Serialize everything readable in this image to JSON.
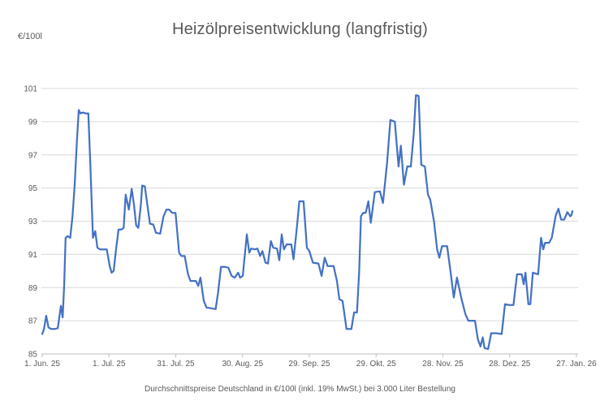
{
  "chart_data": {
    "type": "line",
    "title": "Heizölpreisentwicklung (langfristig)",
    "unit_label": "€/100l",
    "caption": "Durchschnittspreise Deutschland in €/100l (inkl. 19% MwSt.) bei 3.000 Liter Bestellung",
    "xlabel": "",
    "ylabel": "€/100l",
    "ylim": [
      85,
      101
    ],
    "y_ticks": [
      85,
      87,
      89,
      91,
      93,
      95,
      97,
      99,
      101
    ],
    "x_tick_labels": [
      "1. Jun. 25",
      "1. Jul. 25",
      "31. Jul. 25",
      "30. Aug. 25",
      "29. Sep. 25",
      "29. Okt. 25",
      "28. Nov. 25",
      "28. Dez. 25",
      "27. Jan. 26"
    ],
    "x_tick_days": [
      0,
      30,
      60,
      90,
      120,
      150,
      180,
      210,
      240
    ],
    "xlim_days": [
      0,
      240
    ],
    "grid": "horizontal",
    "legend": "none",
    "colors": {
      "line": "#4472c4",
      "grid": "#d9d9d9",
      "axis": "#bfbfbf",
      "text": "#595959"
    },
    "series": [
      {
        "name": "Heizölpreis",
        "points": [
          [
            0,
            86.2
          ],
          [
            0.8,
            86.5
          ],
          [
            1.8,
            87.3
          ],
          [
            2.8,
            86.6
          ],
          [
            4,
            86.5
          ],
          [
            5.5,
            86.5
          ],
          [
            7,
            86.55
          ],
          [
            8.4,
            87.9
          ],
          [
            9.2,
            87.2
          ],
          [
            9.9,
            89.2
          ],
          [
            10.5,
            92.0
          ],
          [
            11.3,
            92.1
          ],
          [
            12.6,
            92.0
          ],
          [
            13.6,
            93.3
          ],
          [
            14.6,
            95.2
          ],
          [
            15.6,
            97.9
          ],
          [
            16.4,
            99.7
          ],
          [
            17.2,
            99.5
          ],
          [
            18.3,
            99.55
          ],
          [
            19.5,
            99.5
          ],
          [
            20.7,
            99.5
          ],
          [
            21.6,
            96.5
          ],
          [
            22.8,
            92.0
          ],
          [
            23.8,
            92.4
          ],
          [
            24.8,
            91.4
          ],
          [
            26,
            91.3
          ],
          [
            27.5,
            91.3
          ],
          [
            29,
            91.3
          ],
          [
            30.3,
            90.3
          ],
          [
            31.2,
            89.9
          ],
          [
            32.1,
            90.0
          ],
          [
            33.1,
            91.2
          ],
          [
            34.3,
            92.5
          ],
          [
            35.6,
            92.5
          ],
          [
            36.6,
            92.6
          ],
          [
            37.5,
            94.6
          ],
          [
            38.9,
            93.7
          ],
          [
            40.2,
            94.95
          ],
          [
            41.2,
            94.0
          ],
          [
            42.2,
            92.75
          ],
          [
            43.2,
            92.6
          ],
          [
            44.3,
            94.0
          ],
          [
            44.9,
            95.15
          ],
          [
            46.1,
            95.1
          ],
          [
            47.4,
            93.8
          ],
          [
            48.4,
            92.85
          ],
          [
            49.9,
            92.8
          ],
          [
            51.1,
            92.3
          ],
          [
            53,
            92.25
          ],
          [
            54.5,
            93.3
          ],
          [
            55.8,
            93.7
          ],
          [
            57.1,
            93.7
          ],
          [
            58.4,
            93.5
          ],
          [
            59.9,
            93.5
          ],
          [
            61.5,
            91.1
          ],
          [
            62.5,
            90.9
          ],
          [
            64,
            90.9
          ],
          [
            65.5,
            89.8
          ],
          [
            66.6,
            89.4
          ],
          [
            69,
            89.4
          ],
          [
            70.1,
            89.1
          ],
          [
            71.1,
            89.6
          ],
          [
            72.6,
            88.2
          ],
          [
            73.8,
            87.8
          ],
          [
            76,
            87.75
          ],
          [
            77.9,
            87.7
          ],
          [
            79,
            88.7
          ],
          [
            80.3,
            90.25
          ],
          [
            82,
            90.25
          ],
          [
            83.6,
            90.2
          ],
          [
            85.1,
            89.7
          ],
          [
            86.5,
            89.6
          ],
          [
            88,
            89.9
          ],
          [
            88.9,
            89.6
          ],
          [
            90.1,
            89.7
          ],
          [
            91.9,
            92.2
          ],
          [
            93,
            91.1
          ],
          [
            93.9,
            91.35
          ],
          [
            95.5,
            91.3
          ],
          [
            96.7,
            91.35
          ],
          [
            97.9,
            90.9
          ],
          [
            98.9,
            91.2
          ],
          [
            100.3,
            90.5
          ],
          [
            101.4,
            90.45
          ],
          [
            102.7,
            91.8
          ],
          [
            103.8,
            91.4
          ],
          [
            105.5,
            91.35
          ],
          [
            106.5,
            90.65
          ],
          [
            107.6,
            92.2
          ],
          [
            108.6,
            91.3
          ],
          [
            109.8,
            91.6
          ],
          [
            111.9,
            91.6
          ],
          [
            112.9,
            90.7
          ],
          [
            114.3,
            92.5
          ],
          [
            115.5,
            94.2
          ],
          [
            117.4,
            94.2
          ],
          [
            118.9,
            91.4
          ],
          [
            120,
            91.2
          ],
          [
            121.6,
            90.5
          ],
          [
            124.1,
            90.45
          ],
          [
            125.5,
            89.7
          ],
          [
            126.9,
            90.8
          ],
          [
            128.2,
            90.3
          ],
          [
            130.9,
            90.3
          ],
          [
            132.4,
            89.4
          ],
          [
            133.5,
            88.3
          ],
          [
            134.9,
            88.2
          ],
          [
            136.7,
            86.5
          ],
          [
            138.9,
            86.5
          ],
          [
            140.1,
            87.5
          ],
          [
            141.4,
            87.5
          ],
          [
            142.4,
            90.0
          ],
          [
            143.2,
            93.3
          ],
          [
            144.2,
            93.5
          ],
          [
            145.3,
            93.5
          ],
          [
            146.5,
            94.2
          ],
          [
            147.6,
            92.9
          ],
          [
            149.4,
            94.75
          ],
          [
            151.7,
            94.8
          ],
          [
            153.1,
            94.1
          ],
          [
            154.9,
            96.5
          ],
          [
            156.4,
            99.1
          ],
          [
            158.4,
            99.0
          ],
          [
            160.1,
            96.3
          ],
          [
            161.1,
            97.55
          ],
          [
            162.5,
            95.2
          ],
          [
            164,
            96.3
          ],
          [
            165.6,
            96.3
          ],
          [
            166.9,
            98.3
          ],
          [
            167.9,
            100.6
          ],
          [
            169.1,
            100.55
          ],
          [
            170.3,
            96.4
          ],
          [
            171.9,
            96.3
          ],
          [
            173.3,
            94.6
          ],
          [
            174.3,
            94.3
          ],
          [
            176,
            93.0
          ],
          [
            177.4,
            91.3
          ],
          [
            178.4,
            90.8
          ],
          [
            179.6,
            91.5
          ],
          [
            181.9,
            91.5
          ],
          [
            183.4,
            90.0
          ],
          [
            184.9,
            88.4
          ],
          [
            186.3,
            89.6
          ],
          [
            188.4,
            88.3
          ],
          [
            190.1,
            87.4
          ],
          [
            191.4,
            87.0
          ],
          [
            194.4,
            87.0
          ],
          [
            195.7,
            85.9
          ],
          [
            196.9,
            85.45
          ],
          [
            197.9,
            86.0
          ],
          [
            198.7,
            85.35
          ],
          [
            200.3,
            85.3
          ],
          [
            201.7,
            86.25
          ],
          [
            204,
            86.25
          ],
          [
            206.4,
            86.2
          ],
          [
            207.9,
            88.0
          ],
          [
            209.6,
            87.95
          ],
          [
            211.7,
            87.95
          ],
          [
            213.3,
            89.8
          ],
          [
            215.4,
            89.8
          ],
          [
            216.3,
            89.2
          ],
          [
            217.1,
            89.9
          ],
          [
            218.4,
            88.0
          ],
          [
            219.3,
            88.0
          ],
          [
            220.4,
            89.9
          ],
          [
            221.6,
            89.85
          ],
          [
            222.8,
            89.8
          ],
          [
            224.1,
            92.0
          ],
          [
            225.1,
            91.3
          ],
          [
            225.9,
            91.7
          ],
          [
            227.7,
            91.7
          ],
          [
            228.9,
            92.0
          ],
          [
            230.7,
            93.35
          ],
          [
            231.9,
            93.75
          ],
          [
            233.1,
            93.1
          ],
          [
            234.5,
            93.1
          ],
          [
            235.9,
            93.55
          ],
          [
            237.2,
            93.3
          ],
          [
            237.7,
            93.35
          ],
          [
            238.2,
            93.6
          ]
        ]
      }
    ]
  }
}
